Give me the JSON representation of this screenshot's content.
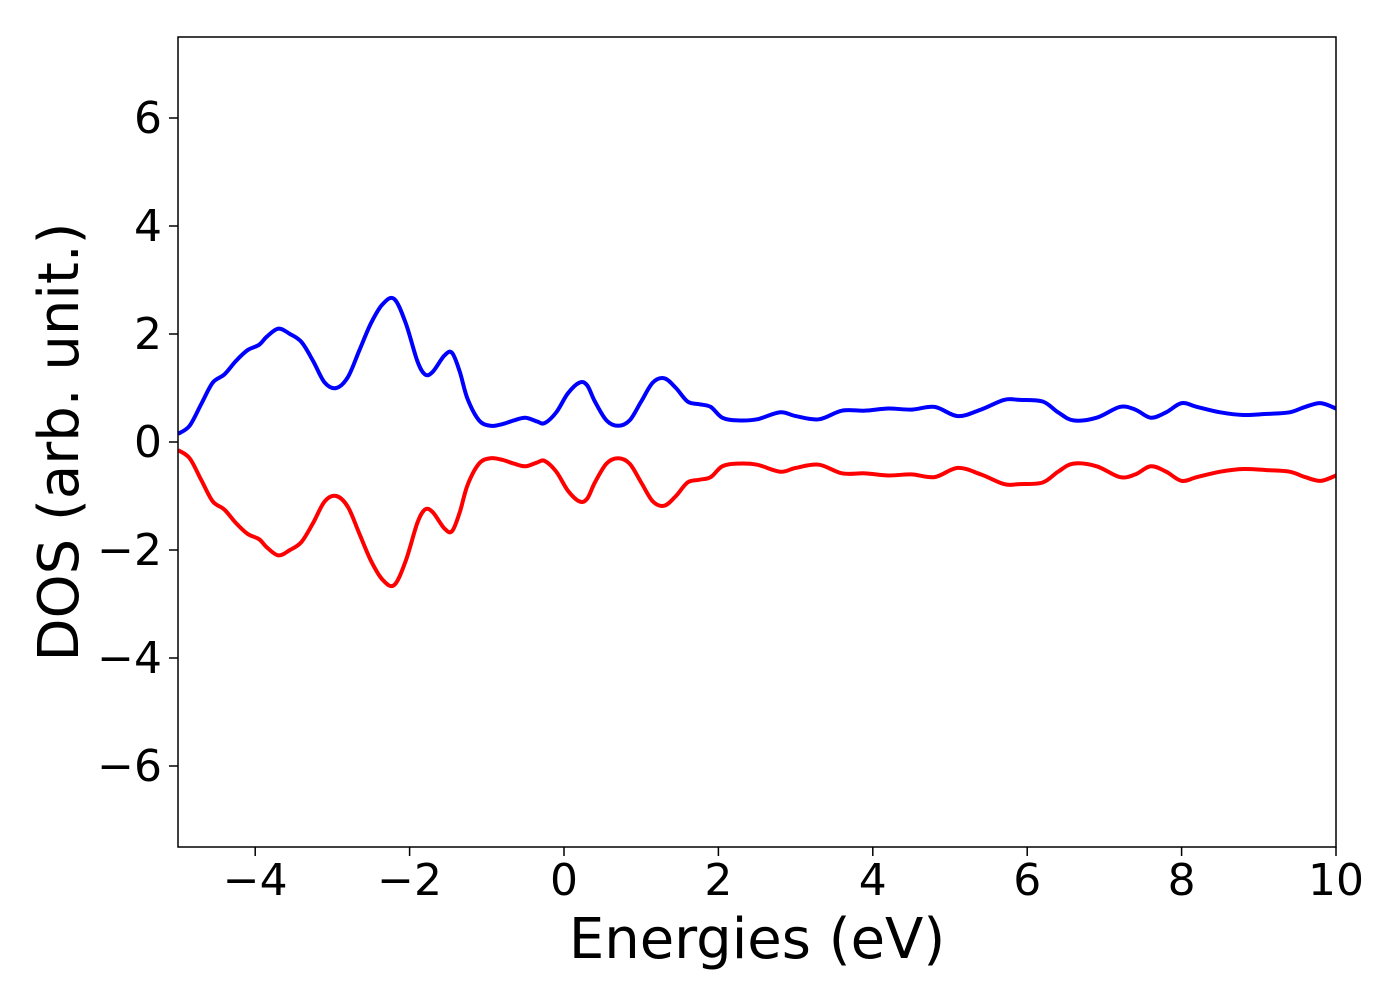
{
  "chart_data": {
    "type": "line",
    "title": "",
    "xlabel": "Energies (eV)",
    "ylabel": "DOS (arb. unit.)",
    "xlim": [
      -5,
      10
    ],
    "ylim": [
      -7.5,
      7.5
    ],
    "xticks": [
      -4,
      -2,
      0,
      2,
      4,
      6,
      8,
      10
    ],
    "xtick_labels": [
      "−4",
      "−2",
      "0",
      "2",
      "4",
      "6",
      "8",
      "10"
    ],
    "yticks": [
      -6,
      -4,
      -2,
      0,
      2,
      4,
      6
    ],
    "ytick_labels": [
      "−6",
      "−4",
      "−2",
      "0",
      "2",
      "4",
      "6"
    ],
    "grid": false,
    "legend": "none",
    "series": [
      {
        "color": "#0000ff",
        "x": [
          -5.0,
          -4.85,
          -4.7,
          -4.55,
          -4.4,
          -4.25,
          -4.1,
          -3.95,
          -3.85,
          -3.7,
          -3.55,
          -3.4,
          -3.25,
          -3.1,
          -2.95,
          -2.8,
          -2.65,
          -2.5,
          -2.35,
          -2.2,
          -2.05,
          -1.9,
          -1.8,
          -1.7,
          -1.55,
          -1.45,
          -1.35,
          -1.25,
          -1.1,
          -0.95,
          -0.8,
          -0.65,
          -0.5,
          -0.35,
          -0.25,
          -0.1,
          0.05,
          0.2,
          0.3,
          0.4,
          0.55,
          0.7,
          0.85,
          1.0,
          1.15,
          1.3,
          1.45,
          1.6,
          1.75,
          1.9,
          2.05,
          2.25,
          2.5,
          2.8,
          3.0,
          3.3,
          3.6,
          3.9,
          4.2,
          4.5,
          4.8,
          5.1,
          5.4,
          5.7,
          5.9,
          6.2,
          6.4,
          6.6,
          6.9,
          7.2,
          7.4,
          7.6,
          7.8,
          8.0,
          8.2,
          8.5,
          8.8,
          9.1,
          9.4,
          9.6,
          9.8,
          10.0
        ],
        "values": [
          0.15,
          0.3,
          0.7,
          1.1,
          1.25,
          1.5,
          1.7,
          1.8,
          1.95,
          2.1,
          2.0,
          1.85,
          1.5,
          1.1,
          1.0,
          1.2,
          1.7,
          2.2,
          2.55,
          2.65,
          2.2,
          1.5,
          1.25,
          1.3,
          1.6,
          1.65,
          1.3,
          0.8,
          0.4,
          0.3,
          0.33,
          0.4,
          0.45,
          0.38,
          0.35,
          0.55,
          0.9,
          1.1,
          1.05,
          0.75,
          0.4,
          0.3,
          0.4,
          0.75,
          1.1,
          1.18,
          1.0,
          0.75,
          0.7,
          0.65,
          0.45,
          0.4,
          0.42,
          0.55,
          0.48,
          0.42,
          0.58,
          0.58,
          0.62,
          0.6,
          0.65,
          0.48,
          0.6,
          0.78,
          0.78,
          0.75,
          0.55,
          0.4,
          0.45,
          0.65,
          0.6,
          0.45,
          0.55,
          0.72,
          0.65,
          0.55,
          0.5,
          0.52,
          0.55,
          0.65,
          0.72,
          0.62
        ]
      },
      {
        "color": "#ff0000",
        "x": [
          -5.0,
          -4.85,
          -4.7,
          -4.55,
          -4.4,
          -4.25,
          -4.1,
          -3.95,
          -3.85,
          -3.7,
          -3.55,
          -3.4,
          -3.25,
          -3.1,
          -2.95,
          -2.8,
          -2.65,
          -2.5,
          -2.35,
          -2.2,
          -2.05,
          -1.9,
          -1.8,
          -1.7,
          -1.55,
          -1.45,
          -1.35,
          -1.25,
          -1.1,
          -0.95,
          -0.8,
          -0.65,
          -0.5,
          -0.35,
          -0.25,
          -0.1,
          0.05,
          0.2,
          0.3,
          0.4,
          0.55,
          0.7,
          0.85,
          1.0,
          1.15,
          1.3,
          1.45,
          1.6,
          1.75,
          1.9,
          2.05,
          2.25,
          2.5,
          2.8,
          3.0,
          3.3,
          3.6,
          3.9,
          4.2,
          4.5,
          4.8,
          5.1,
          5.4,
          5.7,
          5.9,
          6.2,
          6.4,
          6.6,
          6.9,
          7.2,
          7.4,
          7.6,
          7.8,
          8.0,
          8.2,
          8.5,
          8.8,
          9.1,
          9.4,
          9.6,
          9.8,
          10.0
        ],
        "values": [
          -0.15,
          -0.3,
          -0.7,
          -1.1,
          -1.25,
          -1.5,
          -1.7,
          -1.8,
          -1.95,
          -2.1,
          -2.0,
          -1.85,
          -1.5,
          -1.1,
          -1.0,
          -1.2,
          -1.7,
          -2.2,
          -2.55,
          -2.65,
          -2.2,
          -1.5,
          -1.25,
          -1.3,
          -1.6,
          -1.65,
          -1.3,
          -0.8,
          -0.4,
          -0.3,
          -0.33,
          -0.4,
          -0.45,
          -0.38,
          -0.35,
          -0.55,
          -0.9,
          -1.1,
          -1.05,
          -0.75,
          -0.4,
          -0.3,
          -0.4,
          -0.75,
          -1.1,
          -1.18,
          -1.0,
          -0.75,
          -0.7,
          -0.65,
          -0.45,
          -0.4,
          -0.42,
          -0.55,
          -0.48,
          -0.42,
          -0.58,
          -0.58,
          -0.62,
          -0.6,
          -0.65,
          -0.48,
          -0.6,
          -0.78,
          -0.78,
          -0.75,
          -0.55,
          -0.4,
          -0.45,
          -0.65,
          -0.6,
          -0.45,
          -0.55,
          -0.72,
          -0.65,
          -0.55,
          -0.5,
          -0.52,
          -0.55,
          -0.65,
          -0.72,
          -0.62
        ]
      }
    ]
  }
}
